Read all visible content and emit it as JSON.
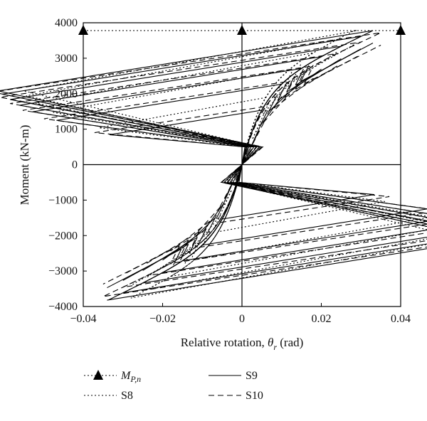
{
  "chart_data": {
    "type": "line",
    "xlabel": "Relative rotation, θr (rad)",
    "xlabel_main": "Relative rotation, ",
    "xlabel_symbol": "θ",
    "xlabel_sub": "r",
    "xlabel_unit": " (rad)",
    "ylabel": "Moment (kN-m)",
    "xlim": [
      -0.04,
      0.04
    ],
    "ylim": [
      -4000,
      4000
    ],
    "xticks": [
      -0.04,
      -0.02,
      0,
      0.02,
      0.04
    ],
    "xtick_labels": [
      "−0.04",
      "−0.02",
      "0",
      "0.02",
      "0.04"
    ],
    "yticks": [
      -4000,
      -3000,
      -2000,
      -1000,
      0,
      1000,
      2000,
      3000,
      4000
    ],
    "ytick_labels": [
      "−4000",
      "−3000",
      "−2000",
      "−1000",
      "0",
      "1000",
      "2000",
      "3000",
      "4000"
    ],
    "grid": false,
    "legend_position": "bottom",
    "legend": [
      {
        "key": "mp",
        "label_main": "M",
        "label_sub": "P,n",
        "style": "dotted-triangle"
      },
      {
        "key": "s9",
        "label": "S9",
        "style": "solid"
      },
      {
        "key": "s8",
        "label": "S8",
        "style": "dotted"
      },
      {
        "key": "s10",
        "label": "S10",
        "style": "dashed"
      }
    ],
    "mp_line": {
      "y": 3780,
      "triangle_x": [
        -0.04,
        0,
        0.04
      ]
    },
    "series": [
      {
        "name": "S9",
        "style": "solid",
        "amplitudes": [
          0.0,
          0.005,
          0.01,
          0.015,
          0.02,
          0.025,
          0.03,
          0.033
        ],
        "neg_amplitudes": [
          0.0,
          0.005,
          0.01,
          0.015,
          0.02,
          0.025,
          0.03,
          0.034
        ],
        "yield": 2000,
        "k_elastic": 400000,
        "slope": 54000,
        "cap": 3820
      },
      {
        "name": "S8",
        "style": "dotted",
        "amplitudes": [
          0.0,
          0.006,
          0.012,
          0.018,
          0.024,
          0.029
        ],
        "neg_amplitudes": [
          0.0,
          0.006,
          0.012,
          0.018,
          0.024,
          0.028
        ],
        "yield": 2200,
        "k_elastic": 450000,
        "slope": 56000,
        "cap": 3780
      },
      {
        "name": "S10",
        "style": "dashed",
        "amplitudes": [
          0.0,
          0.006,
          0.012,
          0.018,
          0.024,
          0.03,
          0.035
        ],
        "neg_amplitudes": [
          0.0,
          0.006,
          0.012,
          0.018,
          0.024,
          0.03,
          0.035
        ],
        "yield": 1900,
        "k_elastic": 380000,
        "slope": 52000,
        "cap": 3750
      }
    ]
  }
}
